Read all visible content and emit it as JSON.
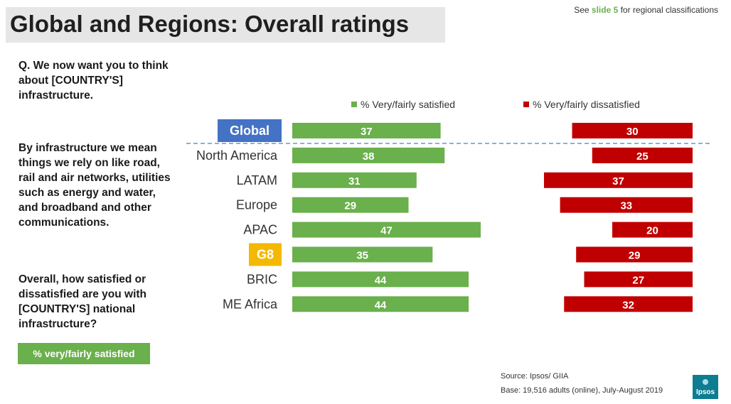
{
  "header": {
    "title": "Global and Regions: Overall ratings",
    "note_prefix": "See ",
    "note_link": "slide 5",
    "note_suffix": " for regional classifications"
  },
  "question": {
    "q1": "Q. We now want you to think about [COUNTRY'S] infrastructure.",
    "q2": "By infrastructure we mean things we rely on like road, rail and air networks, utilities such as energy and water, and broadband and other communications.",
    "q3": "Overall, how satisfied or dissatisfied are you with [COUNTRY'S] national infrastructure?",
    "button_label": "% very/fairly satisfied"
  },
  "legend": {
    "satisfied": "% Very/fairly satisfied",
    "dissatisfied": "% Very/fairly dissatisfied"
  },
  "colors": {
    "satisfied": "#6ab04c",
    "dissatisfied": "#c00000",
    "global_badge": "#4472c4",
    "g8_badge": "#f5b800",
    "divider": "#5b9bd5"
  },
  "chart_data": {
    "type": "bar",
    "categories": [
      "Global",
      "North America",
      "LATAM",
      "Europe",
      "APAC",
      "G8",
      "BRIC",
      "ME Africa"
    ],
    "highlighted_categories": {
      "Global": "blue",
      "G8": "yellow"
    },
    "series": [
      {
        "name": "% Very/fairly satisfied",
        "values": [
          37,
          38,
          31,
          29,
          47,
          35,
          44,
          44
        ]
      },
      {
        "name": "% Very/fairly dissatisfied",
        "values": [
          30,
          25,
          37,
          33,
          20,
          29,
          27,
          32
        ]
      }
    ],
    "legend_position": "top",
    "divider_after": "Global"
  },
  "footer": {
    "source": "Source: Ipsos/ GIIA",
    "base": "Base: 19,516 adults (online), July-August 2019",
    "logo": "Ipsos"
  }
}
